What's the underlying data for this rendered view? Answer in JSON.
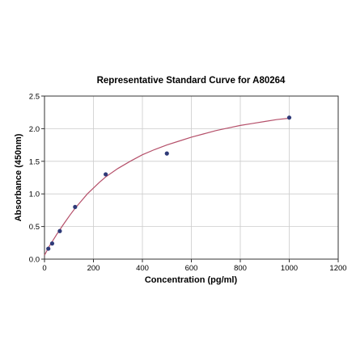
{
  "chart_data": {
    "type": "scatter",
    "title": "Representative Standard Curve for A80264",
    "xlabel": "Concentration (pg/ml)",
    "ylabel": "Absorbance (450nm)",
    "xlim": [
      0,
      1200
    ],
    "ylim": [
      0,
      2.5
    ],
    "x_ticks": [
      "0",
      "200",
      "400",
      "600",
      "800",
      "1000",
      "1200"
    ],
    "y_ticks": [
      "0.0",
      "0.5",
      "1.0",
      "1.5",
      "2.0",
      "2.5"
    ],
    "x_tick_values": [
      0,
      200,
      400,
      600,
      800,
      1000,
      1200
    ],
    "y_tick_values": [
      0,
      0.5,
      1.0,
      1.5,
      2.0,
      2.5
    ],
    "grid": true,
    "series": [
      {
        "type": "scatter",
        "x": [
          15.6,
          31.2,
          62.5,
          125,
          250,
          500,
          1000
        ],
        "y": [
          0.16,
          0.24,
          0.43,
          0.8,
          1.3,
          1.62,
          2.17
        ],
        "color": "#2f3a78"
      },
      {
        "type": "line",
        "x": [
          0,
          10,
          20,
          30,
          40,
          50,
          62.5,
          75,
          90,
          105,
          125,
          150,
          175,
          200,
          225,
          250,
          300,
          350,
          400,
          450,
          500,
          550,
          600,
          650,
          700,
          750,
          800,
          850,
          900,
          950,
          1000
        ],
        "y": [
          0.06,
          0.13,
          0.2,
          0.26,
          0.32,
          0.38,
          0.45,
          0.52,
          0.6,
          0.68,
          0.78,
          0.89,
          1.0,
          1.09,
          1.18,
          1.26,
          1.39,
          1.5,
          1.6,
          1.68,
          1.75,
          1.81,
          1.87,
          1.92,
          1.97,
          2.01,
          2.05,
          2.08,
          2.11,
          2.14,
          2.16
        ],
        "color": "#b5506a"
      }
    ],
    "colors": {
      "plot_border": "#333333",
      "grid": "#cccccc",
      "tick_color": "#333333",
      "background": "#ffffff"
    }
  }
}
